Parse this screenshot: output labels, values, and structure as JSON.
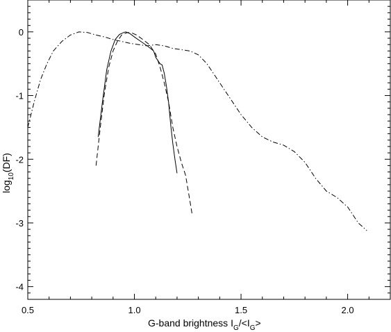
{
  "chart_data": {
    "type": "line",
    "title": "",
    "xlabel": {
      "main": "G-band brightness I",
      "sub1": "G",
      "mid": "/<I",
      "sub2": "G",
      "end": ">"
    },
    "ylabel": {
      "main": "log",
      "sub": "10",
      "end": "(DF)"
    },
    "xlim": [
      0.5,
      2.2
    ],
    "ylim": [
      -4.2,
      0.5
    ],
    "x_ticks": [
      0.5,
      1.0,
      1.5,
      2.0
    ],
    "x_tick_labels": [
      "0.5",
      "1.0",
      "1.5",
      "2.0"
    ],
    "y_ticks": [
      0,
      -1,
      -2,
      -3,
      -4
    ],
    "y_tick_labels": [
      "0",
      "-1",
      "-2",
      "-3",
      "-4"
    ],
    "grid": false,
    "series": [
      {
        "style": "solid",
        "x": [
          0.83,
          0.85,
          0.87,
          0.89,
          0.91,
          0.93,
          0.95,
          0.96,
          0.98,
          1.0,
          1.03,
          1.06,
          1.09,
          1.1,
          1.12,
          1.13,
          1.14,
          1.15,
          1.16,
          1.17,
          1.18,
          1.19,
          1.2
        ],
        "y": [
          -1.65,
          -1.1,
          -0.6,
          -0.3,
          -0.12,
          -0.04,
          -0.01,
          0.0,
          -0.03,
          -0.08,
          -0.15,
          -0.22,
          -0.3,
          -0.4,
          -0.5,
          -0.52,
          -0.65,
          -0.85,
          -1.1,
          -1.45,
          -1.75,
          -2.0,
          -2.22
        ]
      },
      {
        "style": "dashed",
        "x": [
          0.82,
          0.84,
          0.86,
          0.88,
          0.9,
          0.92,
          0.94,
          0.96,
          0.97,
          0.99,
          1.01,
          1.04,
          1.07,
          1.1,
          1.12,
          1.14,
          1.16,
          1.18,
          1.2,
          1.22,
          1.24,
          1.25,
          1.26,
          1.27
        ],
        "y": [
          -2.1,
          -1.5,
          -0.95,
          -0.55,
          -0.3,
          -0.15,
          -0.05,
          -0.02,
          -0.01,
          -0.02,
          -0.05,
          -0.12,
          -0.2,
          -0.35,
          -0.55,
          -0.8,
          -1.1,
          -1.5,
          -1.8,
          -2.05,
          -2.25,
          -2.45,
          -2.65,
          -2.85
        ]
      },
      {
        "style": "dash-dot",
        "x": [
          0.5,
          0.53,
          0.56,
          0.59,
          0.62,
          0.66,
          0.7,
          0.74,
          0.78,
          0.82,
          0.86,
          0.9,
          0.94,
          0.98,
          1.02,
          1.06,
          1.1,
          1.14,
          1.18,
          1.22,
          1.26,
          1.3,
          1.34,
          1.38,
          1.42,
          1.46,
          1.5,
          1.55,
          1.6,
          1.65,
          1.7,
          1.75,
          1.8,
          1.85,
          1.9,
          1.95,
          2.0,
          2.05,
          2.09
        ],
        "y": [
          -1.5,
          -1.1,
          -0.75,
          -0.5,
          -0.3,
          -0.15,
          -0.05,
          0.0,
          -0.01,
          -0.05,
          -0.08,
          -0.12,
          -0.15,
          -0.18,
          -0.2,
          -0.22,
          -0.2,
          -0.22,
          -0.26,
          -0.28,
          -0.3,
          -0.36,
          -0.5,
          -0.7,
          -0.9,
          -1.1,
          -1.3,
          -1.5,
          -1.65,
          -1.73,
          -1.78,
          -1.88,
          -2.05,
          -2.3,
          -2.5,
          -2.6,
          -2.75,
          -3.0,
          -3.12
        ]
      }
    ]
  }
}
